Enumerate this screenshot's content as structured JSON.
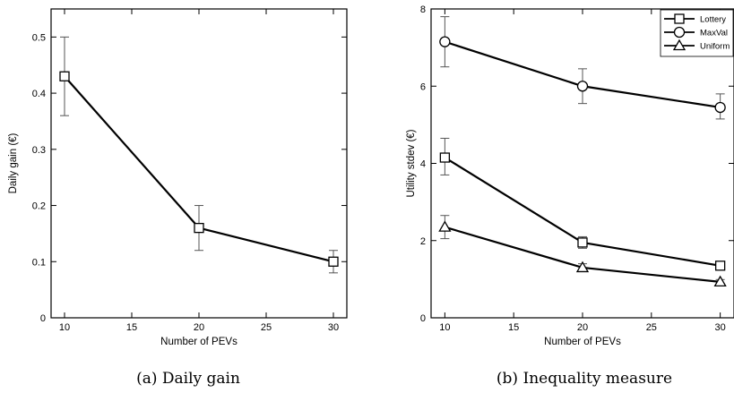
{
  "chart_data": [
    {
      "type": "line",
      "caption": "(a) Daily gain",
      "xlabel": "Number of PEVs",
      "ylabel": "Daily gain (€)",
      "xlim": [
        9,
        31
      ],
      "ylim": [
        0,
        0.55
      ],
      "xticks": [
        10,
        15,
        20,
        25,
        30
      ],
      "yticks": [
        0,
        0.1,
        0.2,
        0.3,
        0.4,
        0.5
      ],
      "ytick_labels": [
        "0",
        "0.1",
        "0.2",
        "0.3",
        "0.4",
        "0.5"
      ],
      "grid": false,
      "x": [
        10,
        20,
        30
      ],
      "series": [
        {
          "marker": "square",
          "values": [
            0.43,
            0.16,
            0.1
          ],
          "err_low": [
            0.36,
            0.12,
            0.08
          ],
          "err_high": [
            0.5,
            0.2,
            0.12
          ]
        }
      ]
    },
    {
      "type": "line",
      "caption": "(b) Inequality measure",
      "xlabel": "Number of PEVs",
      "ylabel": "Utility stdev (€)",
      "xlim": [
        9,
        31
      ],
      "ylim": [
        0,
        8
      ],
      "xticks": [
        10,
        15,
        20,
        25,
        30
      ],
      "yticks": [
        0,
        2,
        4,
        6,
        8
      ],
      "ytick_labels": [
        "0",
        "2",
        "4",
        "6",
        "8"
      ],
      "grid": false,
      "legend_position": "top-right",
      "x": [
        10,
        20,
        30
      ],
      "series": [
        {
          "name": "Lottery",
          "marker": "square",
          "values": [
            4.15,
            1.95,
            1.35
          ],
          "err_low": [
            3.7,
            1.8,
            1.3
          ],
          "err_high": [
            4.65,
            2.1,
            1.42
          ]
        },
        {
          "name": "MaxVal",
          "marker": "circle",
          "values": [
            7.15,
            6.0,
            5.45
          ],
          "err_low": [
            6.5,
            5.55,
            5.15
          ],
          "err_high": [
            7.8,
            6.45,
            5.8
          ]
        },
        {
          "name": "Uniform",
          "marker": "triangle",
          "values": [
            2.35,
            1.3,
            0.93
          ],
          "err_low": [
            2.05,
            1.2,
            0.88
          ],
          "err_high": [
            2.65,
            1.4,
            0.99
          ]
        }
      ]
    }
  ]
}
